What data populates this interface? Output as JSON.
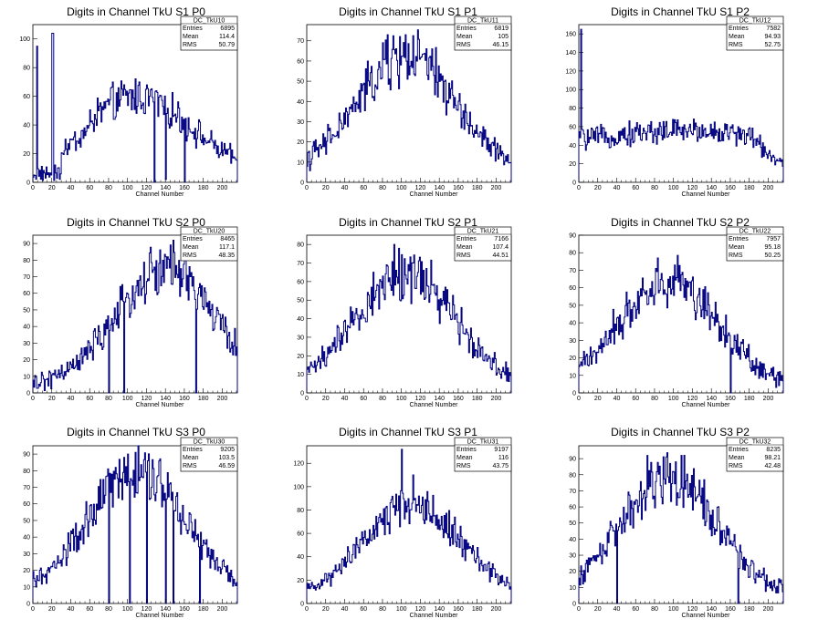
{
  "page": {
    "background": "#ffffff"
  },
  "style": {
    "line_color": "#000080",
    "frame_color": "#000000"
  },
  "chart_data": [
    {
      "type": "histogram",
      "title": "Digits in Channel TkU S1 P0",
      "xlabel": "Channel Number",
      "ylabel": "",
      "xlim": [
        0,
        216
      ],
      "ylim": [
        0,
        110
      ],
      "xticks": [
        0,
        20,
        40,
        60,
        80,
        100,
        120,
        140,
        160,
        180,
        200
      ],
      "yticks": [
        0,
        20,
        40,
        60,
        80,
        100
      ],
      "stats": {
        "name": "DC_TkU10",
        "entries": "6895",
        "mean": "114.4",
        "rms": "50.79"
      },
      "envelope": "s1p0",
      "spikes": [
        [
          4,
          95
        ],
        [
          20,
          104
        ],
        [
          21,
          104
        ],
        [
          128,
          0
        ],
        [
          140,
          2
        ],
        [
          160,
          0
        ]
      ]
    },
    {
      "type": "histogram",
      "title": "Digits in Channel TkU S1 P1",
      "xlabel": "Channel Number",
      "ylabel": "",
      "xlim": [
        0,
        216
      ],
      "ylim": [
        0,
        78
      ],
      "xticks": [
        0,
        20,
        40,
        60,
        80,
        100,
        120,
        140,
        160,
        180,
        200
      ],
      "yticks": [
        0,
        10,
        20,
        30,
        40,
        50,
        60,
        70
      ],
      "stats": {
        "name": "DC_TkU11",
        "entries": "6819",
        "mean": "105",
        "rms": "46.15"
      },
      "envelope": "bell_c105_a58",
      "spikes": [
        [
          85,
          73
        ],
        [
          104,
          73
        ]
      ]
    },
    {
      "type": "histogram",
      "title": "Digits in Channel TkU S1 P2",
      "xlabel": "Channel Number",
      "ylabel": "",
      "xlim": [
        0,
        216
      ],
      "ylim": [
        0,
        170
      ],
      "xticks": [
        0,
        20,
        40,
        60,
        80,
        100,
        120,
        140,
        160,
        180,
        200
      ],
      "yticks": [
        0,
        20,
        40,
        60,
        80,
        100,
        120,
        140,
        160
      ],
      "stats": {
        "name": "DC_TkU12",
        "entries": "7582",
        "mean": "94.93",
        "rms": "52.75"
      },
      "envelope": "s1p2",
      "spikes": [
        [
          2,
          165
        ]
      ]
    },
    {
      "type": "histogram",
      "title": "Digits in Channel TkU S2 P0",
      "xlabel": "Channel Number",
      "ylabel": "",
      "xlim": [
        0,
        216
      ],
      "ylim": [
        0,
        95
      ],
      "xticks": [
        0,
        20,
        40,
        60,
        80,
        100,
        120,
        140,
        160,
        180,
        200
      ],
      "yticks": [
        0,
        10,
        20,
        30,
        40,
        50,
        60,
        70,
        80,
        90
      ],
      "stats": {
        "name": "DC_TkU20",
        "entries": "8465",
        "mean": "117.1",
        "rms": "48.35"
      },
      "envelope": "bell_c140_a70",
      "spikes": [
        [
          80,
          0
        ],
        [
          96,
          0
        ],
        [
          140,
          82
        ],
        [
          148,
          92
        ],
        [
          172,
          0
        ]
      ]
    },
    {
      "type": "histogram",
      "title": "Digits in Channel TkU S2 P1",
      "xlabel": "Channel Number",
      "ylabel": "",
      "xlim": [
        0,
        216
      ],
      "ylim": [
        0,
        85
      ],
      "xticks": [
        0,
        20,
        40,
        60,
        80,
        100,
        120,
        140,
        160,
        180,
        200
      ],
      "yticks": [
        0,
        10,
        20,
        30,
        40,
        50,
        60,
        70,
        80
      ],
      "stats": {
        "name": "DC_TkU21",
        "entries": "7166",
        "mean": "107.4",
        "rms": "44.51"
      },
      "envelope": "bell_c105_a60",
      "spikes": [
        [
          92,
          80
        ],
        [
          112,
          70
        ]
      ]
    },
    {
      "type": "histogram",
      "title": "Digits in Channel TkU S2 P2",
      "xlabel": "Channel Number",
      "ylabel": "",
      "xlim": [
        0,
        216
      ],
      "ylim": [
        0,
        90
      ],
      "xticks": [
        0,
        20,
        40,
        60,
        80,
        100,
        120,
        140,
        160,
        180,
        200
      ],
      "yticks": [
        0,
        10,
        20,
        30,
        40,
        50,
        60,
        70,
        80,
        90
      ],
      "stats": {
        "name": "DC_TkU22",
        "entries": "7957",
        "mean": "95.18",
        "rms": "50.25"
      },
      "envelope": "bell_c95_a60",
      "spikes": [
        [
          83,
          77
        ],
        [
          160,
          0
        ]
      ]
    },
    {
      "type": "histogram",
      "title": "Digits in Channel TkU S3 P0",
      "xlabel": "Channel Number",
      "ylabel": "",
      "xlim": [
        0,
        216
      ],
      "ylim": [
        0,
        95
      ],
      "xticks": [
        0,
        20,
        40,
        60,
        80,
        100,
        120,
        140,
        160,
        180,
        200
      ],
      "yticks": [
        0,
        10,
        20,
        30,
        40,
        50,
        60,
        70,
        80,
        90
      ],
      "stats": {
        "name": "DC_TkU30",
        "entries": "9205",
        "mean": "103.5",
        "rms": "46.59"
      },
      "envelope": "bell_c110_a75",
      "spikes": [
        [
          80,
          0
        ],
        [
          100,
          90
        ],
        [
          102,
          0
        ],
        [
          120,
          0
        ],
        [
          140,
          0
        ],
        [
          148,
          0
        ],
        [
          176,
          0
        ]
      ]
    },
    {
      "type": "histogram",
      "title": "Digits in Channel TkU S3 P1",
      "xlabel": "Channel Number",
      "ylabel": "",
      "xlim": [
        0,
        216
      ],
      "ylim": [
        0,
        135
      ],
      "xticks": [
        0,
        20,
        40,
        60,
        80,
        100,
        120,
        140,
        160,
        180,
        200
      ],
      "yticks": [
        0,
        20,
        40,
        60,
        80,
        100,
        120
      ],
      "stats": {
        "name": "DC_TkU31",
        "entries": "9197",
        "mean": "116",
        "rms": "43.75"
      },
      "envelope": "bell_c112_a80",
      "spikes": [
        [
          100,
          132
        ],
        [
          112,
          110
        ]
      ]
    },
    {
      "type": "histogram",
      "title": "Digits in Channel TkU S3 P2",
      "xlabel": "Channel Number",
      "ylabel": "",
      "xlim": [
        0,
        216
      ],
      "ylim": [
        0,
        98
      ],
      "xticks": [
        0,
        20,
        40,
        60,
        80,
        100,
        120,
        140,
        160,
        180,
        200
      ],
      "yticks": [
        0,
        10,
        20,
        30,
        40,
        50,
        60,
        70,
        80,
        90
      ],
      "stats": {
        "name": "DC_TkU32",
        "entries": "8235",
        "mean": "98.21",
        "rms": "42.48"
      },
      "envelope": "bell_c95_a75",
      "spikes": [
        [
          40,
          0
        ],
        [
          72,
          92
        ],
        [
          108,
          92
        ],
        [
          168,
          0
        ]
      ]
    }
  ],
  "stat_labels": {
    "entries": "Entries",
    "mean": "Mean",
    "rms": "RMS"
  }
}
